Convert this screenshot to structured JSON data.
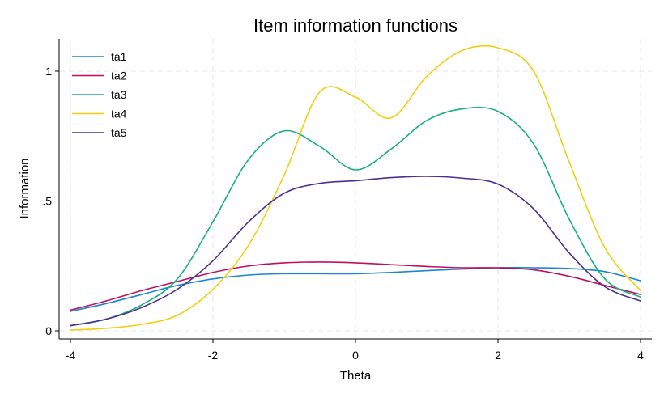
{
  "chart_data": {
    "type": "line",
    "title": "Item information functions",
    "xlabel": "Theta",
    "ylabel": "Information",
    "xlim": [
      -4,
      4
    ],
    "ylim": [
      0,
      1.1
    ],
    "xticks": [
      -4,
      -2,
      0,
      2,
      4
    ],
    "xtick_labels": [
      "-4",
      "-2",
      "0",
      "2",
      "4"
    ],
    "yticks": [
      0,
      0.5,
      1
    ],
    "ytick_labels": [
      "0",
      ".5",
      "1"
    ],
    "grid": true,
    "legend_position": "top-left",
    "series": [
      {
        "name": "ta1",
        "color": "#1a85d0",
        "x": [
          -4,
          -3.5,
          -3,
          -2.5,
          -2,
          -1.5,
          -1,
          -0.5,
          0,
          0.5,
          1,
          1.5,
          2,
          2.5,
          3,
          3.5,
          4
        ],
        "values": [
          0.075,
          0.105,
          0.14,
          0.175,
          0.2,
          0.215,
          0.22,
          0.22,
          0.22,
          0.225,
          0.232,
          0.238,
          0.243,
          0.243,
          0.24,
          0.228,
          0.193
        ]
      },
      {
        "name": "ta2",
        "color": "#c10f5f",
        "x": [
          -4,
          -3.5,
          -3,
          -2.5,
          -2,
          -1.5,
          -1,
          -0.5,
          0,
          0.5,
          1,
          1.5,
          2,
          2.5,
          3,
          3.5,
          4
        ],
        "values": [
          0.08,
          0.115,
          0.155,
          0.19,
          0.225,
          0.25,
          0.262,
          0.265,
          0.262,
          0.255,
          0.248,
          0.243,
          0.243,
          0.235,
          0.21,
          0.175,
          0.14
        ]
      },
      {
        "name": "ta3",
        "color": "#17b081",
        "x": [
          -4,
          -3.5,
          -3,
          -2.5,
          -2,
          -1.5,
          -1,
          -0.5,
          0,
          0.5,
          1,
          1.5,
          2,
          2.5,
          3,
          3.5,
          4
        ],
        "values": [
          0.02,
          0.045,
          0.1,
          0.2,
          0.42,
          0.66,
          0.77,
          0.71,
          0.62,
          0.7,
          0.81,
          0.855,
          0.845,
          0.72,
          0.43,
          0.2,
          0.13
        ]
      },
      {
        "name": "ta4",
        "color": "#f4ce0e",
        "x": [
          -4,
          -3.5,
          -3,
          -2.5,
          -2,
          -1.5,
          -1,
          -0.5,
          0,
          0.5,
          1,
          1.5,
          2,
          2.5,
          3,
          3.5,
          4
        ],
        "values": [
          0.003,
          0.01,
          0.025,
          0.06,
          0.16,
          0.33,
          0.6,
          0.92,
          0.9,
          0.82,
          0.98,
          1.08,
          1.09,
          1.0,
          0.65,
          0.32,
          0.155
        ]
      },
      {
        "name": "ta5",
        "color": "#4b3092",
        "x": [
          -4,
          -3.5,
          -3,
          -2.5,
          -2,
          -1.5,
          -1,
          -0.5,
          0,
          0.5,
          1,
          1.5,
          2,
          2.5,
          3,
          3.5,
          4
        ],
        "values": [
          0.02,
          0.045,
          0.09,
          0.16,
          0.27,
          0.42,
          0.53,
          0.568,
          0.578,
          0.59,
          0.595,
          0.588,
          0.565,
          0.47,
          0.3,
          0.17,
          0.115
        ]
      }
    ]
  }
}
